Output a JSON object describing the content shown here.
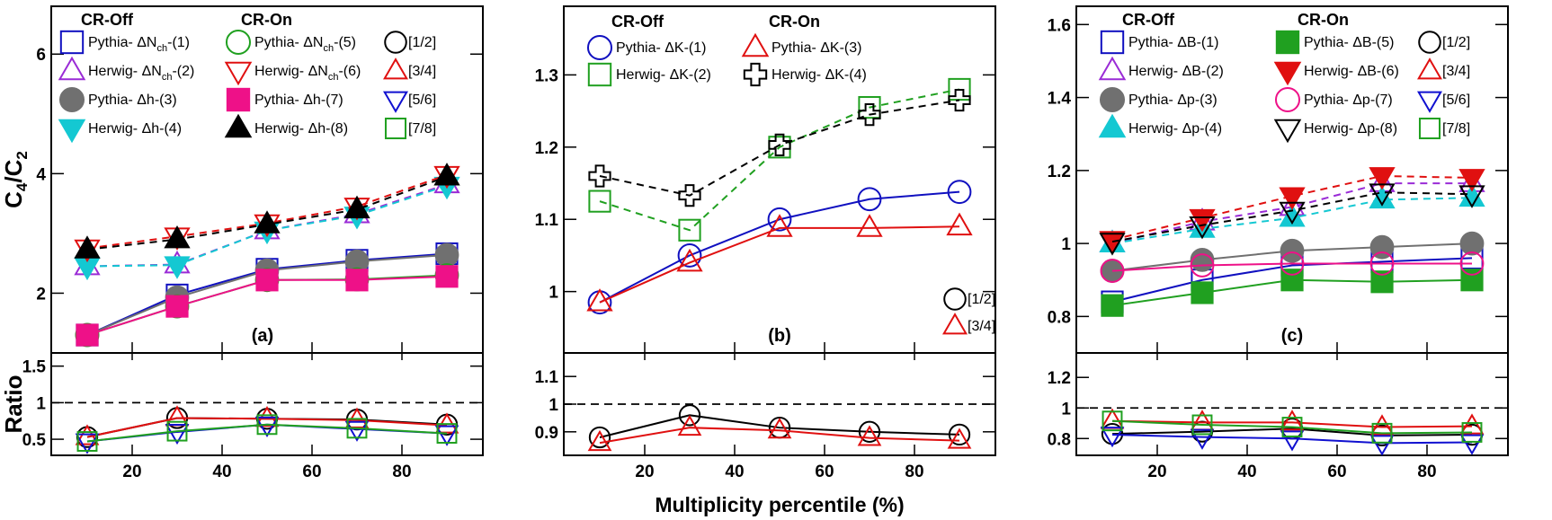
{
  "colors": {
    "pythia_nch": "#1010c0",
    "herwig_nch": "#9a2bd6",
    "pythia_h": "#707070",
    "herwig_h": "#14c8d2",
    "pythia_on": "#20a020",
    "herwig_on": "#e01010",
    "pythia_h_on": "#ee1188",
    "herwig_h_on": "#000000",
    "ratio_12": "#000000",
    "ratio_34": "#e01010",
    "ratio_56": "#1010d0",
    "ratio_78": "#20a020"
  },
  "labels": {
    "ylabel": "C4/C2",
    "ylabel_ratio": "Ratio",
    "xlabel": "Multiplicity percentile (%)"
  },
  "chart_data": [
    {
      "type": "line",
      "panel": "a",
      "panel_label": "(a)",
      "legend_headers": [
        "CR-Off",
        "CR-On"
      ],
      "x": [
        10,
        30,
        50,
        70,
        90
      ],
      "xlim": [
        2,
        98
      ],
      "xticks": [
        20,
        40,
        60,
        80
      ],
      "ylim": [
        1.0,
        6.8
      ],
      "yticks": [
        2,
        4,
        6
      ],
      "ratio_ylim": [
        0.28,
        1.68
      ],
      "ratio_yticks": [
        0.5,
        1,
        1.5
      ],
      "series": [
        {
          "name": "Pythia- ΔNch-(1)",
          "values": [
            1.3,
            1.97,
            2.4,
            2.55,
            2.66
          ],
          "marker": "square-open",
          "color": "#1010c0",
          "dash": false
        },
        {
          "name": "Herwig- ΔNch-(2)",
          "values": [
            2.45,
            2.48,
            3.05,
            3.32,
            3.82
          ],
          "marker": "triangle-up-open",
          "color": "#9a2bd6",
          "dash": true
        },
        {
          "name": "Pythia- Δh-(3)",
          "values": [
            1.3,
            1.93,
            2.38,
            2.53,
            2.64
          ],
          "marker": "circle-filled",
          "color": "#707070",
          "dash": false
        },
        {
          "name": "Herwig- Δh-(4)",
          "values": [
            2.45,
            2.47,
            3.05,
            3.3,
            3.8
          ],
          "marker": "triangle-down-filled",
          "color": "#14c8d2",
          "dash": true
        },
        {
          "name": "Pythia- ΔNch-(5)",
          "values": [
            1.3,
            1.78,
            2.22,
            2.23,
            2.3
          ],
          "marker": "circle-open",
          "color": "#20a020",
          "dash": false
        },
        {
          "name": "Herwig- ΔNch-(6)",
          "values": [
            2.75,
            2.95,
            3.17,
            3.45,
            3.98
          ],
          "marker": "triangle-down-open",
          "color": "#e01010",
          "dash": true
        },
        {
          "name": "Pythia- Δh-(7)",
          "values": [
            1.3,
            1.78,
            2.22,
            2.22,
            2.28
          ],
          "marker": "square-filled",
          "color": "#ee1188",
          "dash": false
        },
        {
          "name": "Herwig- Δh-(8)",
          "values": [
            2.73,
            2.9,
            3.15,
            3.4,
            3.95
          ],
          "marker": "triangle-up-filled",
          "color": "#000000",
          "dash": true
        }
      ],
      "ratio_series": [
        {
          "name": "[1/2]",
          "values": [
            0.53,
            0.79,
            0.78,
            0.77,
            0.7
          ],
          "marker": "circle-open",
          "color": "#000000"
        },
        {
          "name": "[3/4]",
          "values": [
            0.53,
            0.79,
            0.78,
            0.76,
            0.69
          ],
          "marker": "triangle-up-open",
          "color": "#e01010"
        },
        {
          "name": "[5/6]",
          "values": [
            0.47,
            0.6,
            0.7,
            0.64,
            0.58
          ],
          "marker": "triangle-down-open",
          "color": "#1010d0"
        },
        {
          "name": "[7/8]",
          "values": [
            0.47,
            0.61,
            0.7,
            0.65,
            0.58
          ],
          "marker": "square-open",
          "color": "#20a020"
        }
      ]
    },
    {
      "type": "line",
      "panel": "b",
      "panel_label": "(b)",
      "legend_headers": [
        "CR-Off",
        "CR-On"
      ],
      "x": [
        10,
        30,
        50,
        70,
        90
      ],
      "xlim": [
        2,
        98
      ],
      "xticks": [
        20,
        40,
        60,
        80
      ],
      "ylim": [
        0.915,
        1.395
      ],
      "yticks": [
        1,
        1.1,
        1.2,
        1.3
      ],
      "ratio_ylim": [
        0.815,
        1.185
      ],
      "ratio_yticks": [
        0.9,
        1,
        1.1
      ],
      "series": [
        {
          "name": "Pythia- ΔK-(1)",
          "values": [
            0.985,
            1.05,
            1.1,
            1.128,
            1.138
          ],
          "marker": "circle-open",
          "color": "#1010c0",
          "dash": false
        },
        {
          "name": "Herwig- ΔK-(2)",
          "values": [
            1.125,
            1.085,
            1.2,
            1.255,
            1.28
          ],
          "marker": "square-open",
          "color": "#20a020",
          "dash": true
        },
        {
          "name": "Pythia- ΔK-(3)",
          "values": [
            0.985,
            1.04,
            1.088,
            1.088,
            1.09
          ],
          "marker": "triangle-up-open",
          "color": "#e01010",
          "dash": false
        },
        {
          "name": "Herwig- ΔK-(4)",
          "values": [
            1.16,
            1.133,
            1.203,
            1.245,
            1.265
          ],
          "marker": "cross-open",
          "color": "#000000",
          "dash": true
        }
      ],
      "ratio_series": [
        {
          "name": "[1/2]",
          "values": [
            0.88,
            0.96,
            0.915,
            0.9,
            0.89
          ],
          "marker": "circle-open",
          "color": "#000000"
        },
        {
          "name": "[3/4]",
          "values": [
            0.86,
            0.915,
            0.905,
            0.878,
            0.868
          ],
          "marker": "triangle-up-open",
          "color": "#e01010"
        }
      ]
    },
    {
      "type": "line",
      "panel": "c",
      "panel_label": "(c)",
      "legend_headers": [
        "CR-Off",
        "CR-On"
      ],
      "x": [
        10,
        30,
        50,
        70,
        90
      ],
      "xlim": [
        2,
        98
      ],
      "xticks": [
        20,
        40,
        60,
        80
      ],
      "ylim": [
        0.7,
        1.65
      ],
      "yticks": [
        0.8,
        1,
        1.2,
        1.4,
        1.6
      ],
      "ratio_ylim": [
        0.69,
        1.36
      ],
      "ratio_yticks": [
        0.8,
        1,
        1.2
      ],
      "series": [
        {
          "name": "Pythia- ΔB-(1)",
          "values": [
            0.84,
            0.9,
            0.94,
            0.95,
            0.96
          ],
          "marker": "square-open",
          "color": "#1010c0",
          "dash": false
        },
        {
          "name": "Herwig- ΔB-(2)",
          "values": [
            1.0,
            1.06,
            1.1,
            1.165,
            1.165
          ],
          "marker": "triangle-up-open",
          "color": "#9a2bd6",
          "dash": true
        },
        {
          "name": "Pythia- Δp-(3)",
          "values": [
            0.925,
            0.955,
            0.98,
            0.99,
            1.0
          ],
          "marker": "circle-filled",
          "color": "#707070",
          "dash": false
        },
        {
          "name": "Herwig- Δp-(4)",
          "values": [
            1.0,
            1.04,
            1.07,
            1.12,
            1.125
          ],
          "marker": "triangle-up-filled",
          "color": "#14c8d2",
          "dash": true
        },
        {
          "name": "Pythia- ΔB-(5)",
          "values": [
            0.83,
            0.865,
            0.9,
            0.895,
            0.9
          ],
          "marker": "square-filled",
          "color": "#20a020",
          "dash": false
        },
        {
          "name": "Herwig- ΔB-(6)",
          "values": [
            1.01,
            1.07,
            1.13,
            1.185,
            1.18
          ],
          "marker": "triangle-down-filled",
          "color": "#e01010",
          "dash": true
        },
        {
          "name": "Pythia- Δp-(7)",
          "values": [
            0.925,
            0.94,
            0.945,
            0.945,
            0.945
          ],
          "marker": "circle-open",
          "color": "#ee1188",
          "dash": false
        },
        {
          "name": "Herwig- Δp-(8)",
          "values": [
            1.005,
            1.05,
            1.09,
            1.14,
            1.135
          ],
          "marker": "triangle-down-open",
          "color": "#000000",
          "dash": true
        }
      ],
      "ratio_series": [
        {
          "name": "[1/2]",
          "values": [
            0.83,
            0.845,
            0.865,
            0.82,
            0.825
          ],
          "marker": "circle-open",
          "color": "#000000"
        },
        {
          "name": "[3/4]",
          "values": [
            0.915,
            0.905,
            0.905,
            0.875,
            0.88
          ],
          "marker": "triangle-up-open",
          "color": "#e01010"
        },
        {
          "name": "[5/6]",
          "values": [
            0.825,
            0.81,
            0.8,
            0.77,
            0.775
          ],
          "marker": "triangle-down-open",
          "color": "#1010d0"
        },
        {
          "name": "[7/8]",
          "values": [
            0.915,
            0.89,
            0.875,
            0.835,
            0.84
          ],
          "marker": "square-open",
          "color": "#20a020"
        }
      ]
    }
  ]
}
